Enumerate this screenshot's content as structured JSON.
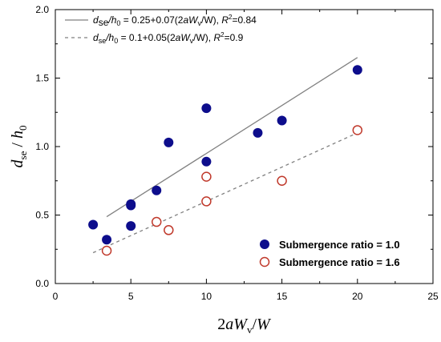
{
  "chart_data": {
    "type": "scatter",
    "xlim": [
      0,
      25
    ],
    "ylim": [
      0.0,
      2.0
    ],
    "x_ticks": [
      "0",
      "5",
      "10",
      "15",
      "20",
      "25"
    ],
    "y_ticks": [
      "0.0",
      "0.5",
      "1.0",
      "1.5",
      "2.0"
    ],
    "xlabel": {
      "prefix": "2",
      "a": "a",
      "W": "W",
      "sub": "v",
      "slash": "/",
      "W2": "W"
    },
    "ylabel": {
      "d": "d",
      "sub": "se",
      "slash": " / ",
      "h": "h",
      "hsub": "0"
    },
    "series": [
      {
        "name": "Submergence ratio = 1.0",
        "marker": "filled-circle",
        "color": "#0d0d8c",
        "points": [
          [
            2.5,
            0.43
          ],
          [
            3.4,
            0.32
          ],
          [
            5.0,
            0.57
          ],
          [
            5.0,
            0.58
          ],
          [
            5.0,
            0.42
          ],
          [
            6.7,
            0.68
          ],
          [
            7.5,
            1.03
          ],
          [
            10.0,
            1.28
          ],
          [
            10.0,
            0.89
          ],
          [
            13.4,
            1.1
          ],
          [
            15.0,
            1.19
          ],
          [
            20.0,
            1.56
          ]
        ]
      },
      {
        "name": "Submergence ratio = 1.6",
        "marker": "open-circle",
        "color": "#c0392b",
        "points": [
          [
            3.4,
            0.24
          ],
          [
            6.7,
            0.45
          ],
          [
            7.5,
            0.39
          ],
          [
            10.0,
            0.78
          ],
          [
            10.0,
            0.6
          ],
          [
            15.0,
            0.75
          ],
          [
            20.0,
            1.12
          ]
        ]
      }
    ],
    "fits": [
      {
        "style": "solid",
        "color": "#808080",
        "intercept": 0.25,
        "slope": 0.07,
        "x_range": [
          3.4,
          20.0
        ],
        "label": {
          "pre": "d",
          "s1": "se",
          "mid": "/h",
          "s2": "0",
          "eq": " = 0.25+0.07(2",
          "a": "a",
          "w": "W",
          "s3": "v",
          "tail": "/W), ",
          "r": "R",
          "sup": "2",
          "rv": "=0.84"
        }
      },
      {
        "style": "dashed",
        "color": "#808080",
        "intercept": 0.1,
        "slope": 0.05,
        "x_range": [
          2.5,
          20.0
        ],
        "label": {
          "pre": "d",
          "s1": "se",
          "mid": "/h",
          "s2": "0",
          "eq": " = 0.1+0.05(2",
          "a": "a",
          "w": "W",
          "s3": "v",
          "tail": "/W), ",
          "r": "R",
          "sup": "2",
          "rv": "=0.9"
        }
      }
    ],
    "legend_placement": "top-left (fits), bottom-right (series)",
    "grid": false
  }
}
